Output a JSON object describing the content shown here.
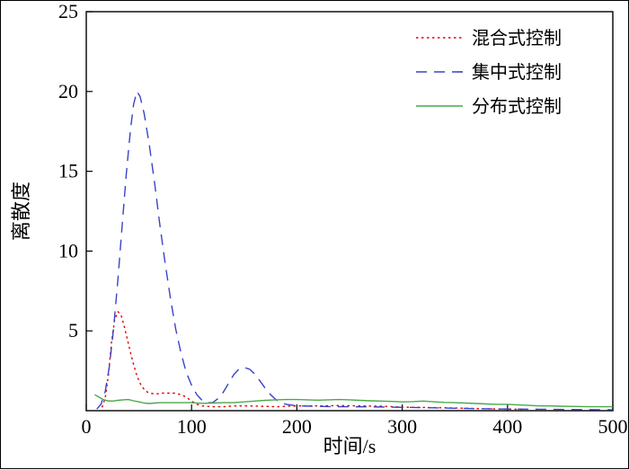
{
  "figure": {
    "background": "#ffffff",
    "frame_color": "#000000"
  },
  "chart_data": {
    "type": "line",
    "title": "",
    "xlabel": "时间/s",
    "ylabel": "离散度",
    "xlim": [
      0,
      500
    ],
    "ylim": [
      0,
      25
    ],
    "x_ticks": [
      0,
      100,
      200,
      300,
      400,
      500
    ],
    "y_ticks": [
      5,
      10,
      15,
      20,
      25
    ],
    "grid": false,
    "legend_position": "top-right-inside",
    "series": [
      {
        "name": "混合式控制",
        "color": "#e60000",
        "line_style": "dotted",
        "points": [
          [
            15,
            0.2
          ],
          [
            18,
            0.8
          ],
          [
            21,
            2.2
          ],
          [
            24,
            4.3
          ],
          [
            27,
            5.7
          ],
          [
            30,
            6.2
          ],
          [
            33,
            6.0
          ],
          [
            36,
            5.3
          ],
          [
            40,
            4.2
          ],
          [
            44,
            3.1
          ],
          [
            48,
            2.2
          ],
          [
            52,
            1.6
          ],
          [
            56,
            1.25
          ],
          [
            60,
            1.1
          ],
          [
            66,
            1.05
          ],
          [
            72,
            1.1
          ],
          [
            78,
            1.1
          ],
          [
            84,
            1.1
          ],
          [
            90,
            1.0
          ],
          [
            95,
            0.85
          ],
          [
            100,
            0.6
          ],
          [
            105,
            0.4
          ],
          [
            110,
            0.3
          ],
          [
            120,
            0.25
          ],
          [
            130,
            0.25
          ],
          [
            140,
            0.3
          ],
          [
            150,
            0.3
          ],
          [
            165,
            0.28
          ],
          [
            180,
            0.25
          ],
          [
            200,
            0.3
          ],
          [
            220,
            0.3
          ],
          [
            240,
            0.32
          ],
          [
            260,
            0.3
          ],
          [
            280,
            0.28
          ],
          [
            300,
            0.22
          ],
          [
            320,
            0.2
          ],
          [
            340,
            0.18
          ],
          [
            360,
            0.15
          ],
          [
            380,
            0.12
          ],
          [
            400,
            0.1
          ],
          [
            415,
            0.08
          ]
        ]
      },
      {
        "name": "集中式控制",
        "color": "#3a43c8",
        "line_style": "dashed",
        "points": [
          [
            10,
            0.1
          ],
          [
            14,
            0.4
          ],
          [
            18,
            1.2
          ],
          [
            22,
            2.8
          ],
          [
            26,
            5.2
          ],
          [
            30,
            8.2
          ],
          [
            34,
            11.5
          ],
          [
            38,
            14.8
          ],
          [
            42,
            17.6
          ],
          [
            45,
            19.2
          ],
          [
            48,
            20.0
          ],
          [
            51,
            19.7
          ],
          [
            55,
            18.6
          ],
          [
            60,
            16.6
          ],
          [
            65,
            14.2
          ],
          [
            70,
            11.6
          ],
          [
            75,
            9.2
          ],
          [
            80,
            7.0
          ],
          [
            85,
            5.1
          ],
          [
            90,
            3.6
          ],
          [
            95,
            2.4
          ],
          [
            100,
            1.6
          ],
          [
            105,
            1.0
          ],
          [
            110,
            0.65
          ],
          [
            115,
            0.5
          ],
          [
            120,
            0.5
          ],
          [
            125,
            0.75
          ],
          [
            130,
            1.15
          ],
          [
            135,
            1.7
          ],
          [
            140,
            2.25
          ],
          [
            145,
            2.6
          ],
          [
            150,
            2.7
          ],
          [
            155,
            2.6
          ],
          [
            160,
            2.3
          ],
          [
            165,
            1.85
          ],
          [
            170,
            1.4
          ],
          [
            175,
            1.0
          ],
          [
            180,
            0.7
          ],
          [
            185,
            0.5
          ],
          [
            190,
            0.4
          ],
          [
            200,
            0.3
          ],
          [
            215,
            0.28
          ],
          [
            230,
            0.26
          ],
          [
            250,
            0.25
          ],
          [
            270,
            0.24
          ],
          [
            290,
            0.22
          ],
          [
            310,
            0.2
          ],
          [
            330,
            0.18
          ],
          [
            350,
            0.15
          ],
          [
            370,
            0.13
          ],
          [
            390,
            0.11
          ],
          [
            410,
            0.1
          ],
          [
            430,
            0.09
          ],
          [
            450,
            0.08
          ],
          [
            470,
            0.07
          ],
          [
            490,
            0.06
          ],
          [
            500,
            0.06
          ]
        ]
      },
      {
        "name": "分布式控制",
        "color": "#4ba84b",
        "line_style": "solid",
        "points": [
          [
            8,
            1.0
          ],
          [
            12,
            0.85
          ],
          [
            16,
            0.7
          ],
          [
            20,
            0.62
          ],
          [
            25,
            0.6
          ],
          [
            30,
            0.65
          ],
          [
            35,
            0.68
          ],
          [
            40,
            0.7
          ],
          [
            45,
            0.62
          ],
          [
            50,
            0.55
          ],
          [
            55,
            0.48
          ],
          [
            60,
            0.45
          ],
          [
            65,
            0.48
          ],
          [
            70,
            0.5
          ],
          [
            80,
            0.5
          ],
          [
            90,
            0.5
          ],
          [
            100,
            0.5
          ],
          [
            110,
            0.46
          ],
          [
            120,
            0.48
          ],
          [
            130,
            0.5
          ],
          [
            140,
            0.5
          ],
          [
            150,
            0.55
          ],
          [
            160,
            0.6
          ],
          [
            170,
            0.65
          ],
          [
            180,
            0.68
          ],
          [
            190,
            0.7
          ],
          [
            200,
            0.7
          ],
          [
            210,
            0.68
          ],
          [
            220,
            0.66
          ],
          [
            230,
            0.68
          ],
          [
            240,
            0.7
          ],
          [
            250,
            0.68
          ],
          [
            260,
            0.65
          ],
          [
            270,
            0.62
          ],
          [
            280,
            0.6
          ],
          [
            290,
            0.58
          ],
          [
            300,
            0.55
          ],
          [
            310,
            0.57
          ],
          [
            320,
            0.6
          ],
          [
            330,
            0.56
          ],
          [
            340,
            0.52
          ],
          [
            350,
            0.5
          ],
          [
            360,
            0.48
          ],
          [
            370,
            0.45
          ],
          [
            380,
            0.42
          ],
          [
            390,
            0.4
          ],
          [
            400,
            0.4
          ],
          [
            410,
            0.36
          ],
          [
            420,
            0.33
          ],
          [
            430,
            0.3
          ],
          [
            440,
            0.3
          ],
          [
            450,
            0.28
          ],
          [
            460,
            0.27
          ],
          [
            470,
            0.26
          ],
          [
            480,
            0.25
          ],
          [
            490,
            0.25
          ],
          [
            500,
            0.25
          ]
        ]
      }
    ]
  }
}
